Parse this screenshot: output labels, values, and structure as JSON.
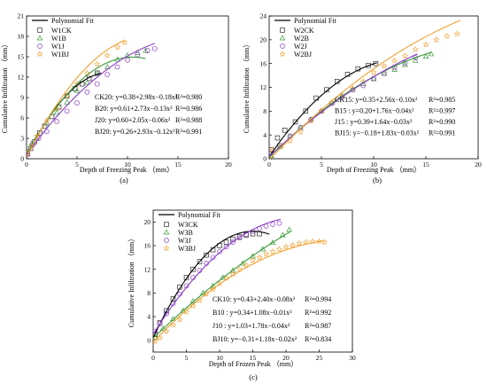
{
  "chart_data": [
    {
      "id": "a",
      "type": "scatter",
      "panel_label": "(a)",
      "xlabel": "Depth of Freezing Peak （mm）",
      "ylabel": "Cumulative Infiltration （mm）",
      "xlim": [
        0,
        20
      ],
      "ylim": [
        0,
        21
      ],
      "xticks": [
        "0",
        "5",
        "10",
        "15",
        "20"
      ],
      "yticks": [
        "0",
        "3",
        "6",
        "9",
        "12",
        "15",
        "18",
        "21"
      ],
      "legend_title": "Polynomial Fit",
      "legend_position": "top-left",
      "series": [
        {
          "name": "W1CK",
          "marker": "square",
          "color": "#2b2b2b",
          "points": [
            [
              0.1,
              0.8
            ],
            [
              0.4,
              1.5
            ],
            [
              0.8,
              2.5
            ],
            [
              1.3,
              3.8
            ],
            [
              1.8,
              4.8
            ],
            [
              2.5,
              6.2
            ],
            [
              3.2,
              7.6
            ],
            [
              4,
              9.2
            ],
            [
              4.8,
              10.3
            ],
            [
              5.5,
              11
            ],
            [
              6.2,
              11.8
            ],
            [
              7,
              12.6
            ]
          ]
        },
        {
          "name": "W1B",
          "marker": "triangle",
          "color": "#3a9a3a",
          "points": [
            [
              0.1,
              1
            ],
            [
              0.5,
              2.2
            ],
            [
              1,
              3.1
            ],
            [
              2,
              5.2
            ],
            [
              3,
              6.8
            ],
            [
              4,
              8.3
            ],
            [
              5,
              10
            ],
            [
              6,
              11.2
            ],
            [
              7,
              12.5
            ],
            [
              8,
              13.5
            ],
            [
              9,
              14.6
            ],
            [
              10,
              15.2
            ],
            [
              11,
              15.6
            ],
            [
              11.8,
              15.9
            ]
          ]
        },
        {
          "name": "W1J",
          "marker": "circle",
          "color": "#8b3fc6",
          "points": [
            [
              0.1,
              0.6
            ],
            [
              0.6,
              2
            ],
            [
              1.2,
              3
            ],
            [
              2,
              4
            ],
            [
              3,
              5.5
            ],
            [
              4,
              7
            ],
            [
              5,
              8.2
            ],
            [
              6,
              9.8
            ],
            [
              7,
              11
            ],
            [
              8,
              12.4
            ],
            [
              9,
              13.5
            ],
            [
              10,
              14.5
            ],
            [
              11,
              15.3
            ],
            [
              12,
              15.9
            ],
            [
              12.7,
              16.2
            ]
          ]
        },
        {
          "name": "W1BJ",
          "marker": "star",
          "color": "#f0a030",
          "points": [
            [
              0.1,
              0.9
            ],
            [
              0.5,
              1.8
            ],
            [
              1,
              3.3
            ],
            [
              2,
              5.6
            ],
            [
              3,
              7.4
            ],
            [
              4,
              9.3
            ],
            [
              5,
              11
            ],
            [
              6,
              12.6
            ],
            [
              7,
              13.9
            ],
            [
              8,
              15.2
            ],
            [
              9,
              16.4
            ],
            [
              9.7,
              17.1
            ]
          ]
        }
      ],
      "fit_curves": [
        {
          "equation": "CK20: y=0.38+2.98x−0.18x²",
          "r2": "R²=0.980",
          "color": "#000000",
          "a": 0.38,
          "b": 2.98,
          "c": -0.18,
          "xmax": 7.4
        },
        {
          "equation": "B20: y=0.61+2.73x−0.13x²",
          "r2": "R²=0.986",
          "color": "#3a9a3a",
          "a": 0.61,
          "b": 2.73,
          "c": -0.13,
          "xmax": 11.8
        },
        {
          "equation": "J20: y=0.60+2.05x−0.06x²",
          "r2": "R²=0.988",
          "color": "#8b3fc6",
          "a": 0.6,
          "b": 2.05,
          "c": -0.06,
          "xmax": 12.7
        },
        {
          "equation": "BJ20: y=0.26+2.93x−0.12x²",
          "r2": "R²=0.991",
          "color": "#f0a030",
          "a": 0.26,
          "b": 2.93,
          "c": -0.12,
          "xmax": 9.8
        }
      ]
    },
    {
      "id": "b",
      "type": "scatter",
      "panel_label": "(b)",
      "xlabel": "Depth of Freezing Peak （mm）",
      "ylabel": "Cumulative Infiltration （mm）",
      "xlim": [
        0,
        20
      ],
      "ylim": [
        0,
        24
      ],
      "xticks": [
        "0",
        "5",
        "10",
        "15",
        "20"
      ],
      "yticks": [
        "0",
        "4",
        "8",
        "12",
        "16",
        "20",
        "24"
      ],
      "legend_title": "Polynomial Fit",
      "legend_position": "top-left",
      "series": [
        {
          "name": "W2CK",
          "marker": "square",
          "color": "#2b2b2b",
          "points": [
            [
              0.2,
              1.5
            ],
            [
              0.8,
              3.5
            ],
            [
              1.5,
              4.8
            ],
            [
              2.5,
              6.2
            ],
            [
              3.5,
              8
            ],
            [
              4.5,
              10.2
            ],
            [
              5.5,
              11.6
            ],
            [
              6.5,
              13
            ],
            [
              7.5,
              14.2
            ],
            [
              8.5,
              15.1
            ],
            [
              9.5,
              15.7
            ],
            [
              10.2,
              16
            ]
          ]
        },
        {
          "name": "W2B",
          "marker": "triangle",
          "color": "#3a9a3a",
          "points": [
            [
              0.2,
              0.5
            ],
            [
              1,
              2
            ],
            [
              2,
              3.8
            ],
            [
              3,
              5.2
            ],
            [
              4,
              6.6
            ],
            [
              5,
              8
            ],
            [
              6,
              9.4
            ],
            [
              7,
              10.6
            ],
            [
              8,
              11.6
            ],
            [
              9,
              12.6
            ],
            [
              10,
              13.4
            ],
            [
              11,
              14.3
            ],
            [
              12,
              15
            ],
            [
              13,
              15.8
            ],
            [
              14,
              16.5
            ],
            [
              15,
              17.2
            ],
            [
              15.5,
              17.6
            ]
          ]
        },
        {
          "name": "W2J",
          "marker": "circle",
          "color": "#8b3fc6",
          "points": [
            [
              0.2,
              1
            ],
            [
              1,
              2.3
            ],
            [
              2,
              3.8
            ],
            [
              3,
              5.3
            ],
            [
              4,
              6.6
            ],
            [
              5,
              8
            ],
            [
              6,
              9.3
            ],
            [
              7,
              10.4
            ],
            [
              8,
              11.6
            ],
            [
              9,
              12.3
            ],
            [
              10,
              13.5
            ],
            [
              11,
              14.4
            ],
            [
              12,
              15.3
            ],
            [
              13,
              16.1
            ],
            [
              14,
              17
            ]
          ]
        },
        {
          "name": "W2BJ",
          "marker": "star",
          "color": "#f0a030",
          "points": [
            [
              0.3,
              1.5
            ],
            [
              1.2,
              2.2
            ],
            [
              2,
              3
            ],
            [
              3,
              4.5
            ],
            [
              4,
              6.3
            ],
            [
              5,
              8
            ],
            [
              6,
              9.5
            ],
            [
              7,
              10.6
            ],
            [
              8,
              11.8
            ],
            [
              9,
              13
            ],
            [
              10,
              14.5
            ],
            [
              11,
              15.6
            ],
            [
              12,
              16.5
            ],
            [
              13,
              17.3
            ],
            [
              14,
              18.4
            ],
            [
              15,
              19.2
            ],
            [
              16,
              20
            ],
            [
              17,
              20.6
            ],
            [
              18,
              21
            ]
          ]
        }
      ],
      "fit_curves": [
        {
          "equation": "CK15: y=0.35+2.56x−0.10x²",
          "r2": "R²=0.985",
          "color": "#000000",
          "a": 0.35,
          "b": 2.56,
          "c": -0.1,
          "xmax": 10.3
        },
        {
          "equation": "B15 : y=0.20+1.76x−0.04x²",
          "r2": "R²=0.997",
          "color": "#3a9a3a",
          "a": 0.2,
          "b": 1.76,
          "c": -0.04,
          "xmax": 15.5
        },
        {
          "equation": "J15 : y=0.39+1.64x−0.03x²",
          "r2": "R²=0.990",
          "color": "#8b3fc6",
          "a": 0.39,
          "b": 1.64,
          "c": -0.03,
          "xmax": 14.2
        },
        {
          "equation": "BJ15: y=−0.18+1.83x−0.03x²",
          "r2": "R²=0.991",
          "color": "#f0a030",
          "a": -0.18,
          "b": 1.83,
          "c": -0.03,
          "xmax": 18.3
        }
      ]
    },
    {
      "id": "c",
      "type": "scatter",
      "panel_label": "(c)",
      "xlabel": "Depth of Frozen Peak （mm）",
      "ylabel": "Cumulative Infiltration （mm）",
      "xlim": [
        0,
        30
      ],
      "ylim": [
        -2,
        22
      ],
      "xticks": [
        "0",
        "5",
        "10",
        "15",
        "20",
        "25",
        "30"
      ],
      "yticks": [
        "0",
        "4",
        "8",
        "12",
        "16",
        "20"
      ],
      "legend_title": "Polynomial Fit",
      "legend_position": "top-left",
      "series": [
        {
          "name": "W3CK",
          "marker": "square",
          "color": "#2b2b2b",
          "points": [
            [
              0.3,
              1
            ],
            [
              1,
              3
            ],
            [
              2,
              5
            ],
            [
              3,
              7
            ],
            [
              4,
              9
            ],
            [
              5,
              10.6
            ],
            [
              6,
              12
            ],
            [
              7,
              13.3
            ],
            [
              8,
              14.4
            ],
            [
              9,
              15.3
            ],
            [
              10,
              16
            ],
            [
              11,
              16.6
            ],
            [
              12,
              17.1
            ],
            [
              13,
              17.5
            ],
            [
              14,
              17.8
            ],
            [
              15,
              18
            ],
            [
              16,
              18
            ]
          ]
        },
        {
          "name": "W3B",
          "marker": "triangle",
          "color": "#3a9a3a",
          "points": [
            [
              0.3,
              0.5
            ],
            [
              1.5,
              2
            ],
            [
              3,
              3.6
            ],
            [
              4.5,
              5
            ],
            [
              6,
              6.6
            ],
            [
              7.5,
              8
            ],
            [
              9,
              9.2
            ],
            [
              10.5,
              10.6
            ],
            [
              12,
              11.8
            ],
            [
              13.5,
              13
            ],
            [
              15,
              14.2
            ],
            [
              16.5,
              15.4
            ],
            [
              18,
              16.5
            ],
            [
              19.5,
              17.8
            ],
            [
              20.5,
              18.7
            ]
          ]
        },
        {
          "name": "W3J",
          "marker": "circle",
          "color": "#8b3fc6",
          "points": [
            [
              0.3,
              1.5
            ],
            [
              1,
              2.8
            ],
            [
              2,
              4.5
            ],
            [
              3,
              6.2
            ],
            [
              4,
              7.8
            ],
            [
              5,
              9.2
            ],
            [
              6,
              10.6
            ],
            [
              7,
              11.8
            ],
            [
              8,
              13
            ],
            [
              9,
              14
            ],
            [
              10,
              15
            ],
            [
              11,
              15.8
            ],
            [
              12,
              16.6
            ],
            [
              13,
              17.3
            ],
            [
              14,
              17.9
            ],
            [
              15,
              18.4
            ],
            [
              16,
              18.9
            ],
            [
              17,
              19.3
            ],
            [
              18,
              19.6
            ],
            [
              19,
              19.8
            ]
          ]
        },
        {
          "name": "W3BJ",
          "marker": "star",
          "color": "#f0a030",
          "points": [
            [
              0.3,
              -0.2
            ],
            [
              1,
              0.4
            ],
            [
              2,
              1.5
            ],
            [
              3,
              2.6
            ],
            [
              4,
              3.5
            ],
            [
              5,
              4.8
            ],
            [
              6,
              5.8
            ],
            [
              7,
              6.7
            ],
            [
              8,
              7.8
            ],
            [
              9,
              8.6
            ],
            [
              10,
              9.6
            ],
            [
              11,
              10.5
            ],
            [
              12,
              11.2
            ],
            [
              13,
              12
            ],
            [
              14,
              12.7
            ],
            [
              15,
              13.5
            ],
            [
              16,
              14
            ],
            [
              17,
              14.6
            ],
            [
              18,
              15
            ],
            [
              19,
              15.4
            ],
            [
              20,
              15.8
            ],
            [
              21,
              16.1
            ],
            [
              22,
              16.4
            ],
            [
              23,
              16.6
            ],
            [
              24,
              16.7
            ],
            [
              25,
              16.7
            ],
            [
              25.8,
              16.6
            ]
          ]
        }
      ],
      "fit_curves": [
        {
          "equation": "CK10: y=0.43+2.40x−0.08x²",
          "r2": "R²=0.994",
          "color": "#000000",
          "a": 0.43,
          "b": 2.4,
          "c": -0.08,
          "xmax": 17.5
        },
        {
          "equation": "B10 : y=0.34+1.08x−0.01x²",
          "r2": "R²=0.992",
          "color": "#3a9a3a",
          "a": 0.34,
          "b": 1.08,
          "c": -0.01,
          "xmax": 20.6
        },
        {
          "equation": "J10 : y=1.03+1.78x−0.04x²",
          "r2": "R²=0.987",
          "color": "#8b3fc6",
          "a": 1.03,
          "b": 1.78,
          "c": -0.04,
          "xmax": 19.2
        },
        {
          "equation": "BJ10: y=−0.31+1.18x−0.02x²",
          "r2": "R²=0.834",
          "color": "#f0a030",
          "a": -0.31,
          "b": 1.18,
          "c": -0.02,
          "xmax": 25.8
        }
      ]
    }
  ]
}
